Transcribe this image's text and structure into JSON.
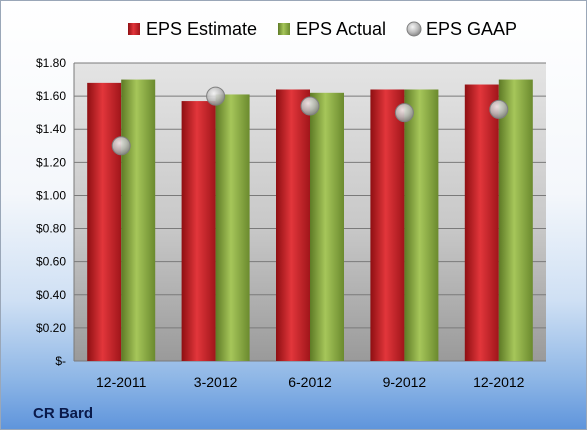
{
  "chart_data": {
    "type": "bar",
    "caption": "CR Bard",
    "categories": [
      "12-2011",
      "3-2012",
      "6-2012",
      "9-2012",
      "12-2012"
    ],
    "series": [
      {
        "name": "EPS Estimate",
        "kind": "bar",
        "color": "#d11f26",
        "values": [
          1.68,
          1.57,
          1.64,
          1.64,
          1.67
        ]
      },
      {
        "name": "EPS Actual",
        "kind": "bar",
        "color": "#8fb04a",
        "values": [
          1.7,
          1.61,
          1.62,
          1.64,
          1.7
        ]
      },
      {
        "name": "EPS GAAP",
        "kind": "marker",
        "color": "#b0b0b0",
        "values": [
          1.3,
          1.6,
          1.54,
          1.5,
          1.52
        ]
      }
    ],
    "ylim": [
      0,
      1.8
    ],
    "yticks": [
      "$-",
      "$0.20",
      "$0.40",
      "$0.60",
      "$0.80",
      "$1.00",
      "$1.20",
      "$1.40",
      "$1.60",
      "$1.80"
    ],
    "ytick_values": [
      0,
      0.2,
      0.4,
      0.6,
      0.8,
      1.0,
      1.2,
      1.4,
      1.6,
      1.8
    ],
    "grid": true,
    "legend_position": "top"
  }
}
